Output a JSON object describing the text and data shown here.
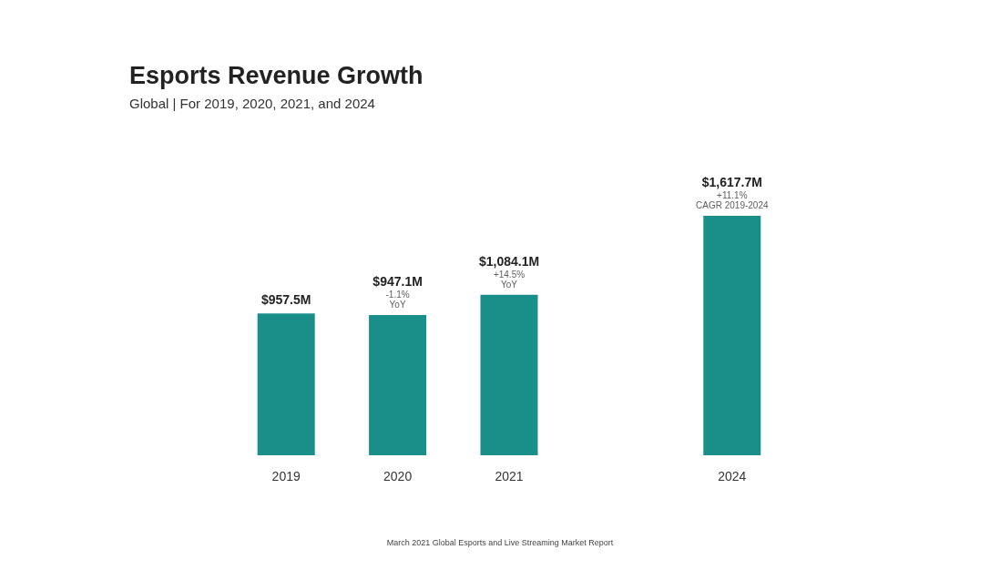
{
  "chart_data": {
    "type": "bar",
    "title": "Esports Revenue Growth",
    "subtitle": "Global | For 2019, 2020, 2021, and 2024",
    "categories": [
      "2019",
      "2020",
      "2021",
      null,
      "2024"
    ],
    "values": [
      957.5,
      947.1,
      1084.1,
      null,
      1617.7
    ],
    "color": "#1a8f8a",
    "value_labels": [
      "$957.5M",
      "$947.1M",
      "$1,084.1M",
      null,
      "$1,617.7M"
    ],
    "annotations": [
      {
        "text": "-1.1%\nYoY",
        "x": "2020",
        "y": 947.1
      },
      {
        "text": "+14.5%\nYoY",
        "x": "2021",
        "y": 1084.1
      },
      {
        "text": "+11.1%\nCAGR 2019-2024",
        "x": "2024",
        "y": 1617.7
      },
      "March 2021 Global Esports and Live Streaming Market Report"
    ]
  }
}
